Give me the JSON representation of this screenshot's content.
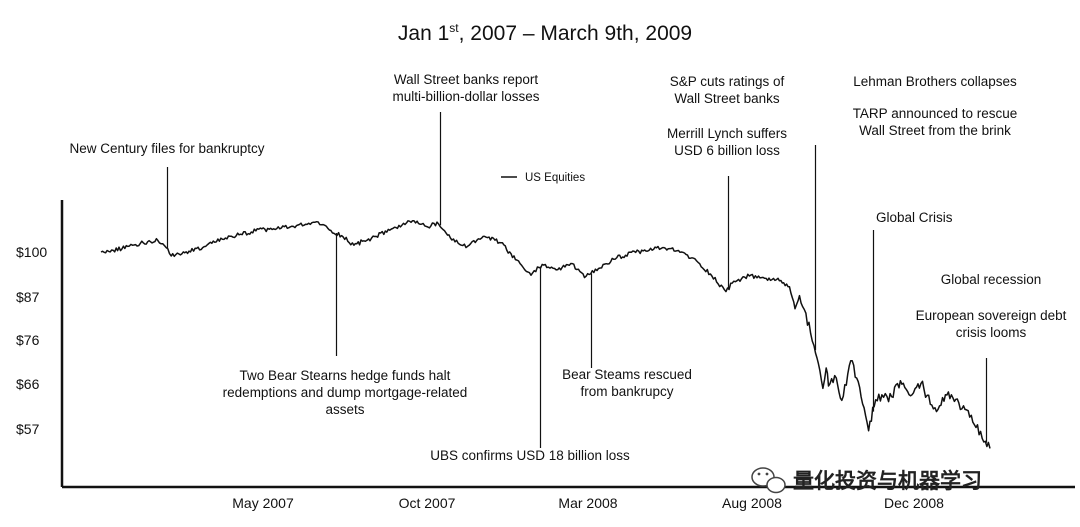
{
  "chart_data": {
    "type": "line",
    "title_main": "Jan 1",
    "title_sup": "st",
    "title_rest": ", 2007 – March 9th, 2009",
    "legend": "US Equities",
    "y_ticks": [
      "$100",
      "$87",
      "$76",
      "$66",
      "$57"
    ],
    "x_ticks": [
      "May 2007",
      "Oct 2007",
      "Mar 2008",
      "Aug 2008",
      "Dec 2008"
    ],
    "series": [
      {
        "name": "US Equities",
        "points": [
          [
            "2007-01-01",
            100
          ],
          [
            "2007-01-12",
            100.4
          ],
          [
            "2007-01-25",
            101.4
          ],
          [
            "2007-02-08",
            102.3
          ],
          [
            "2007-02-21",
            102.9
          ],
          [
            "2007-02-27",
            101.6
          ],
          [
            "2007-03-05",
            99.0
          ],
          [
            "2007-03-12",
            99.5
          ],
          [
            "2007-03-21",
            100.2
          ],
          [
            "2007-04-05",
            101.4
          ],
          [
            "2007-04-20",
            103.2
          ],
          [
            "2007-05-05",
            104.3
          ],
          [
            "2007-05-20",
            105.3
          ],
          [
            "2007-06-05",
            105.8
          ],
          [
            "2007-06-20",
            106.3
          ],
          [
            "2007-07-05",
            106.9
          ],
          [
            "2007-07-15",
            107.5
          ],
          [
            "2007-07-25",
            105.5
          ],
          [
            "2007-08-05",
            104.1
          ],
          [
            "2007-08-16",
            101.7
          ],
          [
            "2007-08-25",
            102.8
          ],
          [
            "2007-09-05",
            103.9
          ],
          [
            "2007-09-20",
            105.9
          ],
          [
            "2007-10-09",
            107.8
          ],
          [
            "2007-10-20",
            106.4
          ],
          [
            "2007-10-31",
            107.0
          ],
          [
            "2007-11-12",
            103.0
          ],
          [
            "2007-11-26",
            101.4
          ],
          [
            "2007-12-10",
            103.9
          ],
          [
            "2007-12-26",
            102.3
          ],
          [
            "2008-01-08",
            98.1
          ],
          [
            "2008-01-22",
            94.2
          ],
          [
            "2008-02-01",
            96.9
          ],
          [
            "2008-02-15",
            95.6
          ],
          [
            "2008-02-28",
            97.1
          ],
          [
            "2008-03-10",
            93.6
          ],
          [
            "2008-03-24",
            96.0
          ],
          [
            "2008-04-08",
            98.6
          ],
          [
            "2008-04-25",
            99.9
          ],
          [
            "2008-05-19",
            101.1
          ],
          [
            "2008-06-05",
            100.0
          ],
          [
            "2008-06-20",
            97.4
          ],
          [
            "2008-07-01",
            94.5
          ],
          [
            "2008-07-15",
            90.1
          ],
          [
            "2008-07-22",
            92.7
          ],
          [
            "2008-08-05",
            94.0
          ],
          [
            "2008-08-20",
            93.4
          ],
          [
            "2008-09-01",
            92.8
          ],
          [
            "2008-09-10",
            91.3
          ],
          [
            "2008-09-15",
            85.8
          ],
          [
            "2008-09-19",
            89.1
          ],
          [
            "2008-09-29",
            79.7
          ],
          [
            "2008-10-02",
            76.6
          ],
          [
            "2008-10-06",
            72.1
          ],
          [
            "2008-10-10",
            65.9
          ],
          [
            "2008-10-13",
            71.0
          ],
          [
            "2008-10-15",
            66.5
          ],
          [
            "2008-10-22",
            68.5
          ],
          [
            "2008-10-27",
            62.9
          ],
          [
            "2008-11-04",
            72.8
          ],
          [
            "2008-11-12",
            66.1
          ],
          [
            "2008-11-20",
            55.3
          ],
          [
            "2008-11-25",
            61.3
          ],
          [
            "2008-12-02",
            64.3
          ],
          [
            "2008-12-08",
            62.6
          ],
          [
            "2008-12-16",
            67.1
          ],
          [
            "2008-12-29",
            64.3
          ],
          [
            "2009-01-06",
            67.1
          ],
          [
            "2009-01-20",
            60.1
          ],
          [
            "2009-01-28",
            64.3
          ],
          [
            "2009-02-09",
            62.3
          ],
          [
            "2009-02-23",
            56.8
          ],
          [
            "2009-03-02",
            53.4
          ],
          [
            "2009-03-09",
            50.9
          ]
        ]
      }
    ],
    "annotations": [
      {
        "id": "new-century",
        "lines": [
          "New Century files for bankruptcy"
        ],
        "date": "2007-03-01",
        "direction": "up"
      },
      {
        "id": "bear-hedge",
        "lines": [
          "Two Bear Stearns hedge funds halt",
          "redemptions and dump mortgage-related",
          "assets"
        ],
        "date": "2007-07-31",
        "direction": "down"
      },
      {
        "id": "wall-street-losses",
        "lines": [
          "Wall Street banks report",
          "multi-billion-dollar losses"
        ],
        "date": "2007-11-01",
        "direction": "up"
      },
      {
        "id": "ubs",
        "lines": [
          "UBS confirms USD 18 billion loss"
        ],
        "date": "2008-01-30",
        "direction": "down"
      },
      {
        "id": "bear-rescued",
        "lines": [
          "Bear Steams rescued",
          "from bankrupcy"
        ],
        "date": "2008-03-16",
        "direction": "down"
      },
      {
        "id": "merrill",
        "lines": [
          "Merrill Lynch suffers",
          "USD 6 billion loss"
        ],
        "date": "2008-07-17",
        "direction": "up"
      },
      {
        "id": "sp-cuts",
        "lines": [
          "S&P cuts ratings of",
          "Wall Street banks"
        ],
        "date": "",
        "direction": "none"
      },
      {
        "id": "lehman",
        "lines": [
          "Lehman Brothers collapses"
        ],
        "date": "",
        "direction": "none"
      },
      {
        "id": "tarp",
        "lines": [
          "TARP announced to rescue",
          "Wall Street from the brink"
        ],
        "date": "2008-10-03",
        "direction": "up"
      },
      {
        "id": "global-crisis",
        "lines": [
          "Global Crisis"
        ],
        "date": "2008-11-24",
        "direction": "up"
      },
      {
        "id": "global-recession",
        "lines": [
          "Global recession"
        ],
        "date": "",
        "direction": "none"
      },
      {
        "id": "euro-debt",
        "lines": [
          "European sovereign debt",
          "crisis looms"
        ],
        "date": "2009-03-05",
        "direction": "up"
      }
    ],
    "line_color": "#111111",
    "grid": false,
    "legend_position": "top-center"
  },
  "watermark": {
    "text": "量化投资与机器学习",
    "icon": "wechat-icon"
  }
}
